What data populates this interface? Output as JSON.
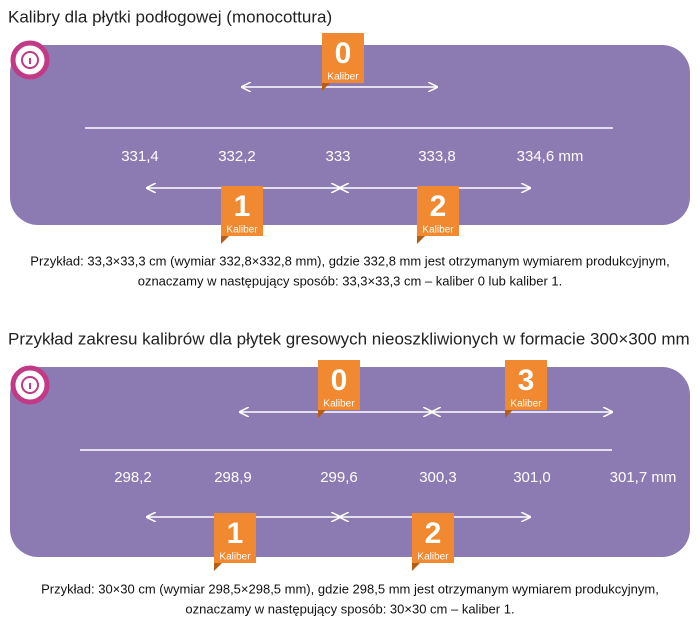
{
  "sections": [
    {
      "title": "Kalibry dla płytki podłogowej (monocottura)",
      "badges_top": [
        {
          "number": "0",
          "label": "Kaliber"
        }
      ],
      "scale": [
        "331,4",
        "332,2",
        "333",
        "333,8",
        "334,6 mm"
      ],
      "badges_bottom": [
        {
          "number": "1",
          "label": "Kaliber"
        },
        {
          "number": "2",
          "label": "Kaliber"
        }
      ],
      "example": [
        "Przykład: 33,3×33,3 cm (wymiar 332,8×332,8 mm), gdzie 332,8 mm jest otrzymanym wymiarem produkcyjnym,",
        "oznaczamy w następujący sposób: 33,3×33,3 cm – kaliber 0 lub kaliber 1."
      ]
    },
    {
      "title": "Przykład zakresu kalibrów dla płytek gresowych nieoszkliwionych w formacie 300×300 mm",
      "badges_top": [
        {
          "number": "0",
          "label": "Kaliber"
        },
        {
          "number": "3",
          "label": "Kaliber"
        }
      ],
      "scale": [
        "298,2",
        "298,9",
        "299,6",
        "300,3",
        "301,0",
        "301,7 mm"
      ],
      "badges_bottom": [
        {
          "number": "1",
          "label": "Kaliber"
        },
        {
          "number": "2",
          "label": "Kaliber"
        }
      ],
      "example": [
        "Przykład: 30×30 cm (wymiar 298,5×298,5 mm), gdzie 298,5 mm jest otrzymanym wymiarem produkcyjnym,",
        "oznaczamy w następujący sposób: 30×30 cm – kaliber 1."
      ]
    }
  ]
}
